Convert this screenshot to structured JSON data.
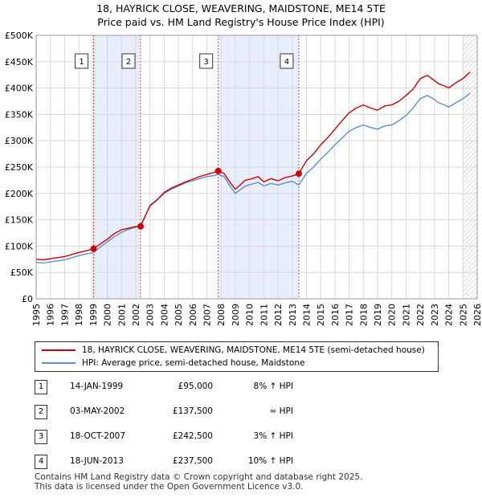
{
  "title_line1": "18, HAYRICK CLOSE, WEAVERING, MAIDSTONE, ME14 5TE",
  "title_line2": "Price paid vs. HM Land Registry's House Price Index (HPI)",
  "colors": {
    "property": "#cc0000",
    "hpi": "#5b8fd0",
    "shade": "#e8eefb",
    "marker_line": "#dd4444",
    "grid": "#d8d8d8"
  },
  "chart_data": {
    "type": "line",
    "title": "Price paid vs. HM Land Registry's House Price Index (HPI)",
    "xlabel": "",
    "ylabel": "",
    "xlim": [
      1995,
      2026
    ],
    "ylim": [
      0,
      500000
    ],
    "yticks": [
      0,
      50000,
      100000,
      150000,
      200000,
      250000,
      300000,
      350000,
      400000,
      450000,
      500000
    ],
    "ytick_labels": [
      "£0",
      "£50K",
      "£100K",
      "£150K",
      "£200K",
      "£250K",
      "£300K",
      "£350K",
      "£400K",
      "£450K",
      "£500K"
    ],
    "xtick_labels": [
      "1995",
      "1996",
      "1997",
      "1998",
      "1999",
      "2000",
      "2001",
      "2002",
      "2003",
      "2004",
      "2005",
      "2006",
      "2007",
      "2008",
      "2009",
      "2010",
      "2011",
      "2012",
      "2013",
      "2014",
      "2015",
      "2016",
      "2017",
      "2018",
      "2019",
      "2020",
      "2021",
      "2022",
      "2023",
      "2024",
      "2025",
      "2026"
    ],
    "shaded_periods": [
      [
        1999.04,
        2002.34
      ],
      [
        2007.8,
        2013.46
      ]
    ],
    "forecast_from": 2025.0,
    "series": [
      {
        "name": "18, HAYRICK CLOSE, WEAVERING, MAIDSTONE, ME14 5TE (semi-detached house)",
        "x": [
          1995.0,
          1995.5,
          1996.0,
          1996.5,
          1997.0,
          1997.5,
          1998.0,
          1998.5,
          1999.04,
          1999.5,
          2000.0,
          2000.5,
          2001.0,
          2001.5,
          2002.0,
          2002.34,
          2003.0,
          2003.5,
          2004.0,
          2004.5,
          2005.0,
          2005.5,
          2006.0,
          2006.5,
          2007.0,
          2007.5,
          2007.8,
          2008.2,
          2008.6,
          2009.0,
          2009.3,
          2009.7,
          2010.2,
          2010.6,
          2011.0,
          2011.5,
          2012.0,
          2012.5,
          2013.0,
          2013.46,
          2014.0,
          2014.5,
          2015.0,
          2015.5,
          2016.0,
          2016.5,
          2017.0,
          2017.5,
          2018.0,
          2018.5,
          2019.0,
          2019.5,
          2020.0,
          2020.5,
          2021.0,
          2021.5,
          2022.0,
          2022.5,
          2022.9,
          2023.3,
          2023.7,
          2024.0,
          2024.5,
          2025.0,
          2025.5
        ],
        "values": [
          75000,
          74000,
          76000,
          78000,
          80000,
          84000,
          88000,
          91000,
          95000,
          104000,
          113000,
          124000,
          131000,
          134000,
          137000,
          137500,
          177000,
          188000,
          202000,
          210000,
          216000,
          222000,
          227000,
          232000,
          236000,
          240000,
          242500,
          238000,
          222000,
          208000,
          215000,
          225000,
          228000,
          232000,
          222000,
          228000,
          224000,
          230000,
          233000,
          237500,
          262000,
          275000,
          292000,
          306000,
          322000,
          338000,
          353000,
          362000,
          368000,
          362000,
          358000,
          366000,
          368000,
          375000,
          386000,
          398000,
          418000,
          424000,
          416000,
          408000,
          404000,
          400000,
          410000,
          418000,
          430000
        ]
      },
      {
        "name": "HPI: Average price, semi-detached house, Maidstone",
        "x": [
          1995.0,
          1995.5,
          1996.0,
          1996.5,
          1997.0,
          1997.5,
          1998.0,
          1998.5,
          1999.04,
          1999.5,
          2000.0,
          2000.5,
          2001.0,
          2001.5,
          2002.0,
          2002.34,
          2003.0,
          2003.5,
          2004.0,
          2004.5,
          2005.0,
          2005.5,
          2006.0,
          2006.5,
          2007.0,
          2007.5,
          2007.8,
          2008.2,
          2008.6,
          2009.0,
          2009.3,
          2009.7,
          2010.2,
          2010.6,
          2011.0,
          2011.5,
          2012.0,
          2012.5,
          2013.0,
          2013.46,
          2014.0,
          2014.5,
          2015.0,
          2015.5,
          2016.0,
          2016.5,
          2017.0,
          2017.5,
          2018.0,
          2018.5,
          2019.0,
          2019.5,
          2020.0,
          2020.5,
          2021.0,
          2021.5,
          2022.0,
          2022.5,
          2022.9,
          2023.3,
          2023.7,
          2024.0,
          2024.5,
          2025.0,
          2025.5
        ],
        "values": [
          69000,
          68000,
          70000,
          72000,
          74000,
          78000,
          82000,
          85000,
          88000,
          98000,
          108000,
          118000,
          126000,
          132000,
          136000,
          139000,
          176000,
          187000,
          200000,
          208000,
          214000,
          220000,
          224000,
          228000,
          232000,
          234000,
          236000,
          232000,
          215000,
          200000,
          206000,
          214000,
          218000,
          221000,
          214000,
          219000,
          216000,
          220000,
          223000,
          216000,
          238000,
          250000,
          265000,
          278000,
          292000,
          305000,
          318000,
          325000,
          330000,
          325000,
          322000,
          328000,
          330000,
          338000,
          348000,
          362000,
          380000,
          386000,
          380000,
          372000,
          368000,
          364000,
          372000,
          380000,
          390000
        ]
      }
    ],
    "sales": [
      {
        "label": "1",
        "x": 1999.04,
        "value": 95000
      },
      {
        "label": "2",
        "x": 2002.34,
        "value": 137500
      },
      {
        "label": "3",
        "x": 2007.8,
        "value": 242500
      },
      {
        "label": "4",
        "x": 2013.46,
        "value": 237500
      }
    ]
  },
  "legend": {
    "property": "18, HAYRICK CLOSE, WEAVERING, MAIDSTONE, ME14 5TE (semi-detached house)",
    "hpi": "HPI: Average price, semi-detached house, Maidstone"
  },
  "sales_table": [
    {
      "num": "1",
      "date": "14-JAN-1999",
      "price": "£95,000",
      "rel": "8% ↑ HPI"
    },
    {
      "num": "2",
      "date": "03-MAY-2002",
      "price": "£137,500",
      "rel": "≈ HPI"
    },
    {
      "num": "3",
      "date": "18-OCT-2007",
      "price": "£242,500",
      "rel": "3% ↑ HPI"
    },
    {
      "num": "4",
      "date": "18-JUN-2013",
      "price": "£237,500",
      "rel": "10% ↑ HPI"
    }
  ],
  "footer_line1": "Contains HM Land Registry data © Crown copyright and database right 2025.",
  "footer_line2": "This data is licensed under the Open Government Licence v3.0."
}
